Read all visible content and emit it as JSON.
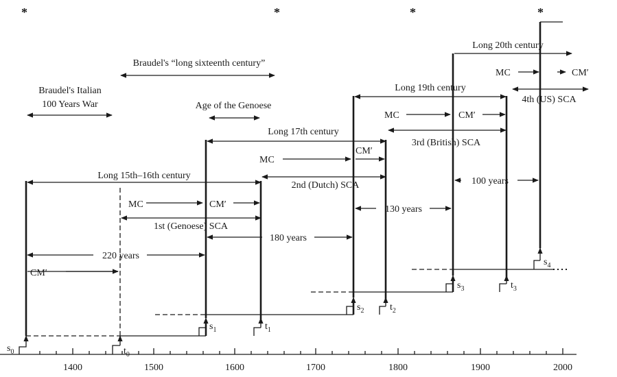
{
  "stars": [
    "*",
    "*",
    "*",
    "*"
  ],
  "axis": {
    "ticks": [
      "1400",
      "1500",
      "1600",
      "1700",
      "1800",
      "1900",
      "2000"
    ]
  },
  "labels": {
    "braudel_long16": "Braudel's “long sixteenth century”",
    "braudel_italian_1": "Braudel's Italian",
    "braudel_italian_2": "100 Years War",
    "age_genoese": "Age of the Genoese",
    "long_15_16": "Long 15th–16th century",
    "long_17": "Long 17th century",
    "long_19": "Long 19th century",
    "long_20": "Long 20th century",
    "mc": "MC",
    "cm_prime": "CM′",
    "sca1": "1st (Genoese) SCA",
    "sca2": "2nd (Dutch) SCA",
    "sca3": "3rd (British) SCA",
    "sca4": "4th (US) SCA",
    "years_220": "220 years",
    "years_180": "180 years",
    "years_130": "130 years",
    "years_100": "100 years"
  },
  "markers": {
    "s": "s",
    "t": "t",
    "s0": "0",
    "t0": "0",
    "s1": "1",
    "t1": "1",
    "s2": "2",
    "t2": "2",
    "s3": "3",
    "t3": "3",
    "s4": "4"
  }
}
